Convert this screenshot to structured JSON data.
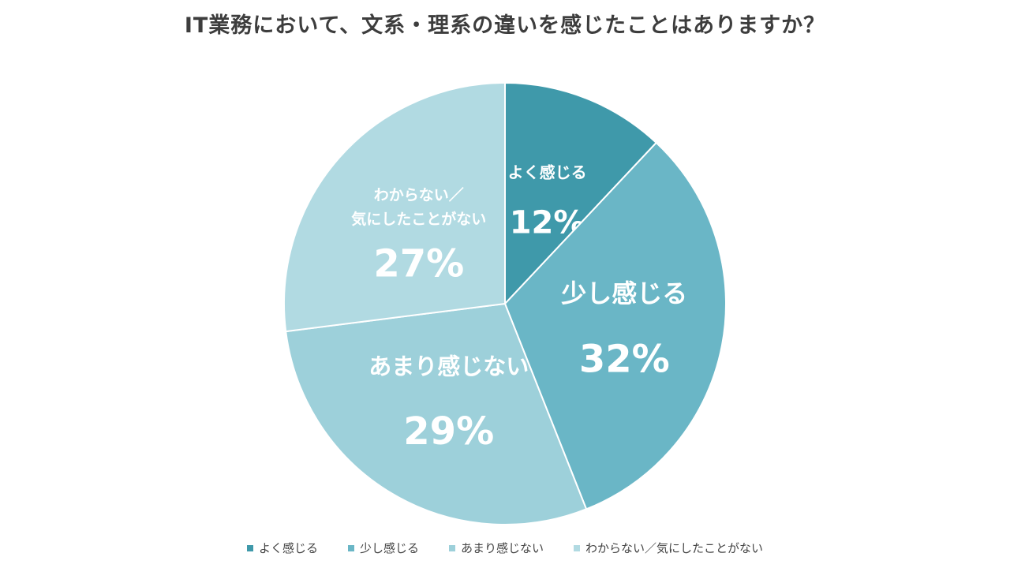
{
  "chart_data": {
    "type": "pie",
    "title": "IT業務において、文系・理系の違いを感じたことはありますか？",
    "start_angle_deg": 0,
    "direction": "clockwise",
    "legend_position": "bottom",
    "slices": [
      {
        "label": "よく感じる",
        "value": 12,
        "value_label": "12%",
        "color": "#3f99aa"
      },
      {
        "label": "少し感じる",
        "value": 32,
        "value_label": "32%",
        "color": "#6ab6c6"
      },
      {
        "label": "あまり感じない",
        "value": 29,
        "value_label": "29%",
        "color": "#9dd0da"
      },
      {
        "label": "わからない／気にしたことがない",
        "label_lines": [
          "わからない／",
          "気にしたことがない"
        ],
        "value": 27,
        "value_label": "27%",
        "color": "#b1dae2"
      }
    ]
  }
}
